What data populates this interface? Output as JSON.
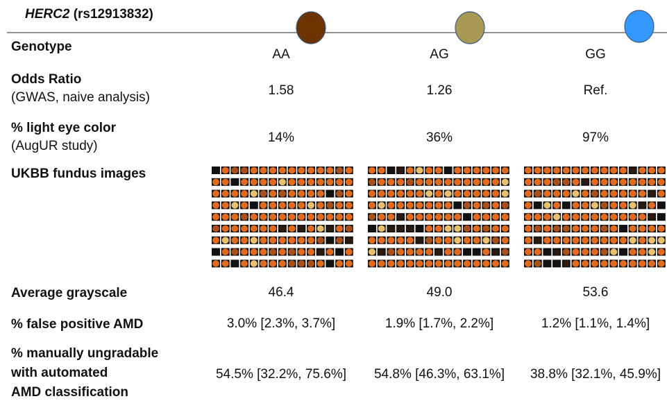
{
  "header": {
    "gene": "HERC2",
    "snp": "(rs12913832)"
  },
  "table": {
    "rows": [
      {
        "label": [
          "Genotype"
        ],
        "values": [
          "AA",
          "AG",
          "GG"
        ]
      },
      {
        "label": [
          "Odds Ratio"
        ],
        "sublabel": "(GWAS, naive analysis)",
        "values": [
          "1.58",
          "1.26",
          "Ref."
        ]
      },
      {
        "label": [
          "% light eye color"
        ],
        "sublabel": "(AugUR study)",
        "values": [
          "14%",
          "36%",
          "97%"
        ]
      },
      {
        "label": [
          "UKBB fundus images"
        ]
      },
      {
        "label": [
          "Average grayscale"
        ],
        "values": [
          "46.4",
          "49.0",
          "53.6"
        ]
      },
      {
        "label": [
          "% false positive AMD"
        ],
        "values": [
          "3.0% [2.3%, 3.7%]",
          "1.9% [1.7%, 2.2%]",
          "1.2% [1.1%, 1.4%]"
        ]
      },
      {
        "label": [
          "% manually ungradable",
          "with automated",
          "AMD classification"
        ],
        "values": [
          "54.5% [32.2%, 75.6%]",
          "54.8% [46.3%, 63.1%]",
          "38.8% [32.1%, 45.9%]"
        ]
      }
    ]
  }
}
